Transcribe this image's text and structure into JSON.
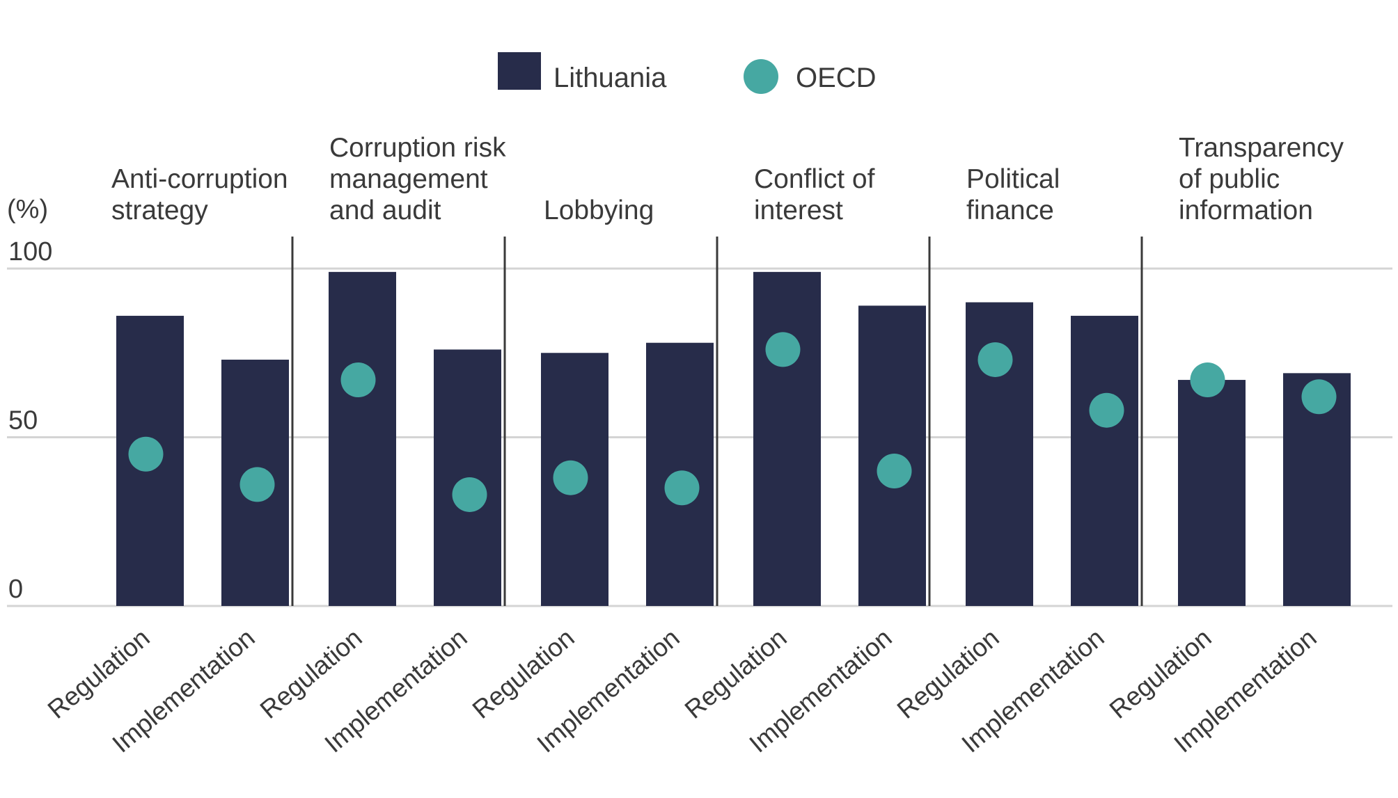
{
  "chart_data": {
    "type": "bar",
    "ylabel": "(%)",
    "ylim": [
      0,
      100
    ],
    "yticks": [
      "0",
      "50",
      "100"
    ],
    "grid": true,
    "legend_position": "top-center",
    "legend": {
      "bar_label": "Lithuania",
      "dot_label": "OECD"
    },
    "colors": {
      "bar": "#272c4a",
      "dot": "#46a8a2",
      "grid": "#d4d4d4",
      "divider": "#3a3a3a",
      "text": "#3a3a3a"
    },
    "groups": [
      {
        "title": [
          "Anti-corruption",
          "strategy"
        ],
        "categories": [
          "Regulation",
          "Implementation"
        ],
        "lithuania": [
          86,
          73
        ],
        "oecd": [
          45,
          36
        ]
      },
      {
        "title": [
          "Corruption risk",
          "management",
          "and audit"
        ],
        "categories": [
          "Regulation",
          "Implementation"
        ],
        "lithuania": [
          99,
          76
        ],
        "oecd": [
          67,
          33
        ]
      },
      {
        "title": [
          "Lobbying"
        ],
        "categories": [
          "Regulation",
          "Implementation"
        ],
        "lithuania": [
          75,
          78
        ],
        "oecd": [
          38,
          35
        ]
      },
      {
        "title": [
          "Conflict of",
          "interest"
        ],
        "categories": [
          "Regulation",
          "Implementation"
        ],
        "lithuania": [
          99,
          89
        ],
        "oecd": [
          76,
          40
        ]
      },
      {
        "title": [
          "Political",
          "finance"
        ],
        "categories": [
          "Regulation",
          "Implementation"
        ],
        "lithuania": [
          90,
          86
        ],
        "oecd": [
          73,
          58
        ]
      },
      {
        "title": [
          "Transparency",
          "of public",
          "information"
        ],
        "categories": [
          "Regulation",
          "Implementation"
        ],
        "lithuania": [
          67,
          69
        ],
        "oecd": [
          67,
          62
        ]
      }
    ]
  }
}
